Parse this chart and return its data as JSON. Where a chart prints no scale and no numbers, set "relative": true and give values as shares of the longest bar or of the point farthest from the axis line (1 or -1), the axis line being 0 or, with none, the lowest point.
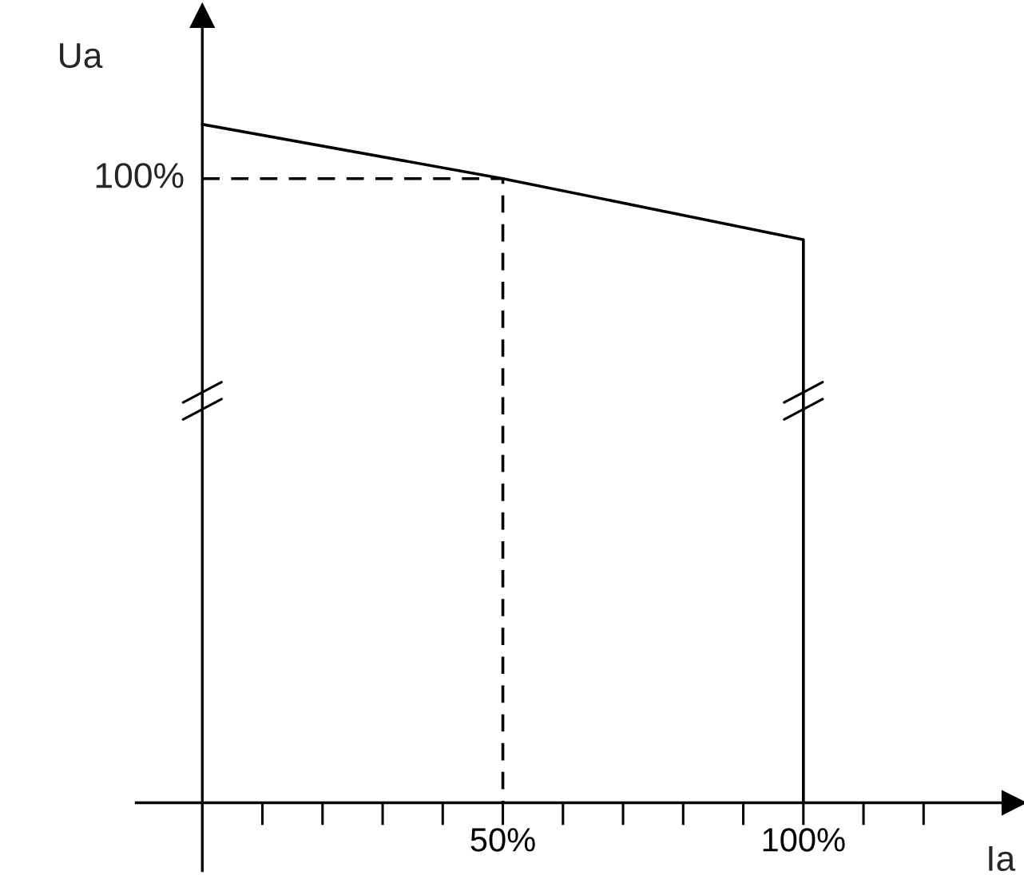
{
  "chart_data": {
    "type": "line",
    "relative": true,
    "xlabel": "Ia",
    "ylabel": "Ua",
    "xlim": [
      -11,
      135
    ],
    "xticks": [
      {
        "value": 10,
        "label": null
      },
      {
        "value": 20,
        "label": null
      },
      {
        "value": 30,
        "label": null
      },
      {
        "value": 40,
        "label": null
      },
      {
        "value": 50,
        "label": "50%"
      },
      {
        "value": 60,
        "label": null
      },
      {
        "value": 70,
        "label": null
      },
      {
        "value": 80,
        "label": null
      },
      {
        "value": 90,
        "label": null
      },
      {
        "value": 100,
        "label": "100%"
      },
      {
        "value": 110,
        "label": null
      },
      {
        "value": 120,
        "label": null
      }
    ],
    "series": [
      {
        "x": [
          0,
          50,
          100,
          100
        ],
        "values": [
          1,
          0.92,
          0.83,
          0
        ],
        "color": "#000000",
        "line_style": "solid"
      },
      {
        "x": [
          0,
          50,
          50
        ],
        "values": [
          0.92,
          0.92,
          0
        ],
        "color": "#000000",
        "line_style": "dashed"
      }
    ],
    "annotations": [
      {
        "text": "100%",
        "x": 0,
        "y": 0.92
      }
    ],
    "grid": false,
    "legend": false,
    "marker": "none"
  }
}
